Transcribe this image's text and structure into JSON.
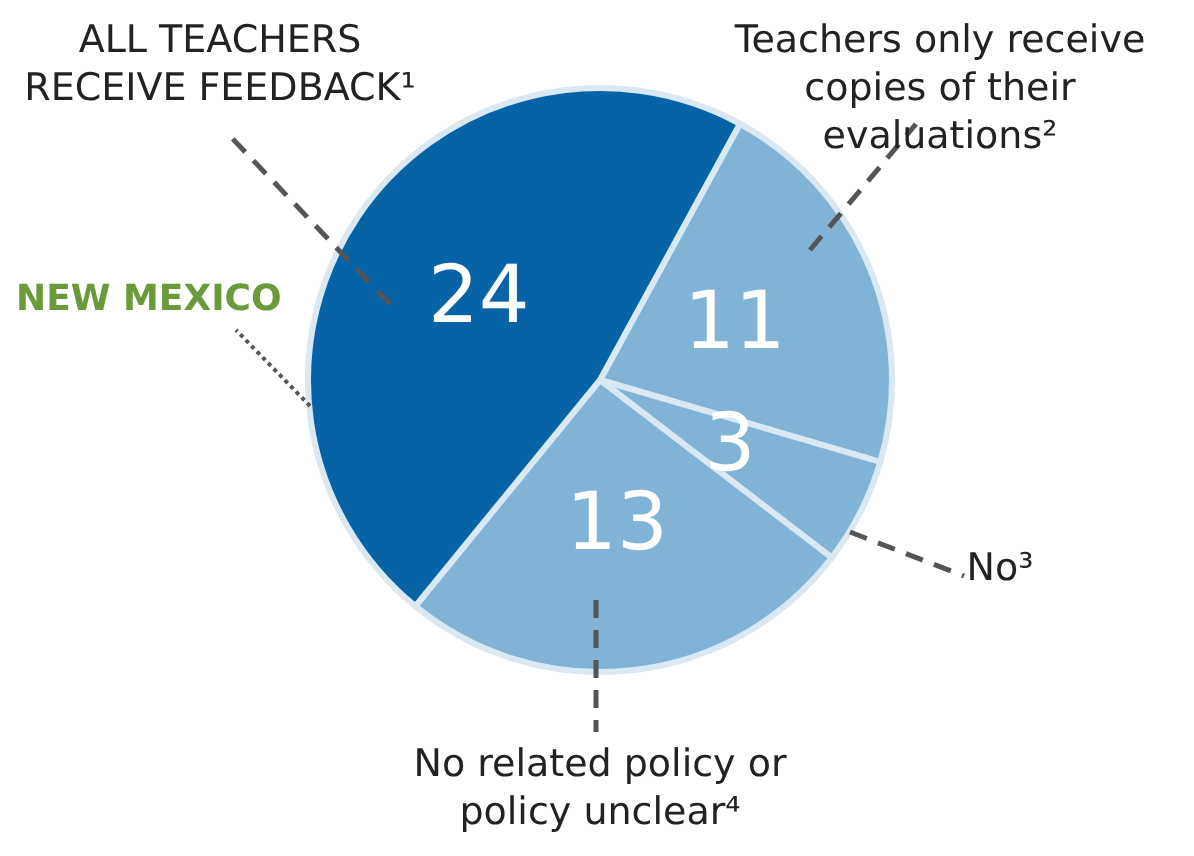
{
  "chart_data": {
    "type": "pie",
    "categories": [
      "Teachers only receive copies of their evaluations²",
      "No³",
      "No related policy or policy unclear⁴",
      "ALL TEACHERS RECEIVE FEEDBACK¹"
    ],
    "values": [
      11,
      3,
      13,
      24
    ],
    "colors": [
      "#80b3d6",
      "#80b3d6",
      "#80b3d6",
      "#0563a6"
    ],
    "data_labels": true,
    "annotations": [
      "NEW MEXICO"
    ]
  }
}
